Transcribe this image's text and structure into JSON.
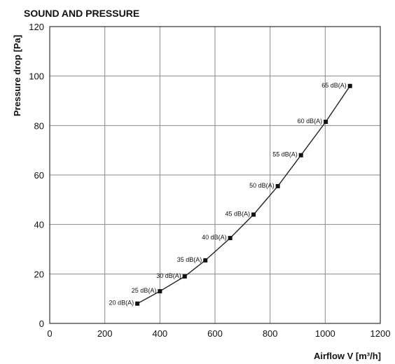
{
  "chart_data": {
    "type": "line",
    "title": "SOUND AND PRESSURE",
    "xlabel": "Airflow V [m³/h]",
    "ylabel": "Pressure drop [Pa]",
    "xlim": [
      0,
      1200
    ],
    "ylim": [
      0,
      120
    ],
    "x_ticks": [
      0,
      200,
      400,
      600,
      800,
      1000,
      1200
    ],
    "y_ticks": [
      0,
      20,
      40,
      60,
      80,
      100,
      120
    ],
    "grid": true,
    "colors": {
      "line": "#222222",
      "grid": "#8a8a8a",
      "frame": "#333333",
      "text": "#111111"
    },
    "series": [
      {
        "x": [
          318,
          400,
          490,
          565,
          655,
          740,
          828,
          912,
          1002,
          1090
        ],
        "y": [
          8,
          13,
          19,
          25.5,
          34.5,
          44,
          55.5,
          68,
          81.5,
          96
        ],
        "labels": [
          "20 dB(A)",
          "25 dB(A)",
          "30 dB(A)",
          "35 dB(A)",
          "40 dB(A)",
          "45 dB(A)",
          "50 dB(A)",
          "55 dB(A)",
          "60 dB(A)",
          "65 dB(A)"
        ]
      }
    ]
  }
}
